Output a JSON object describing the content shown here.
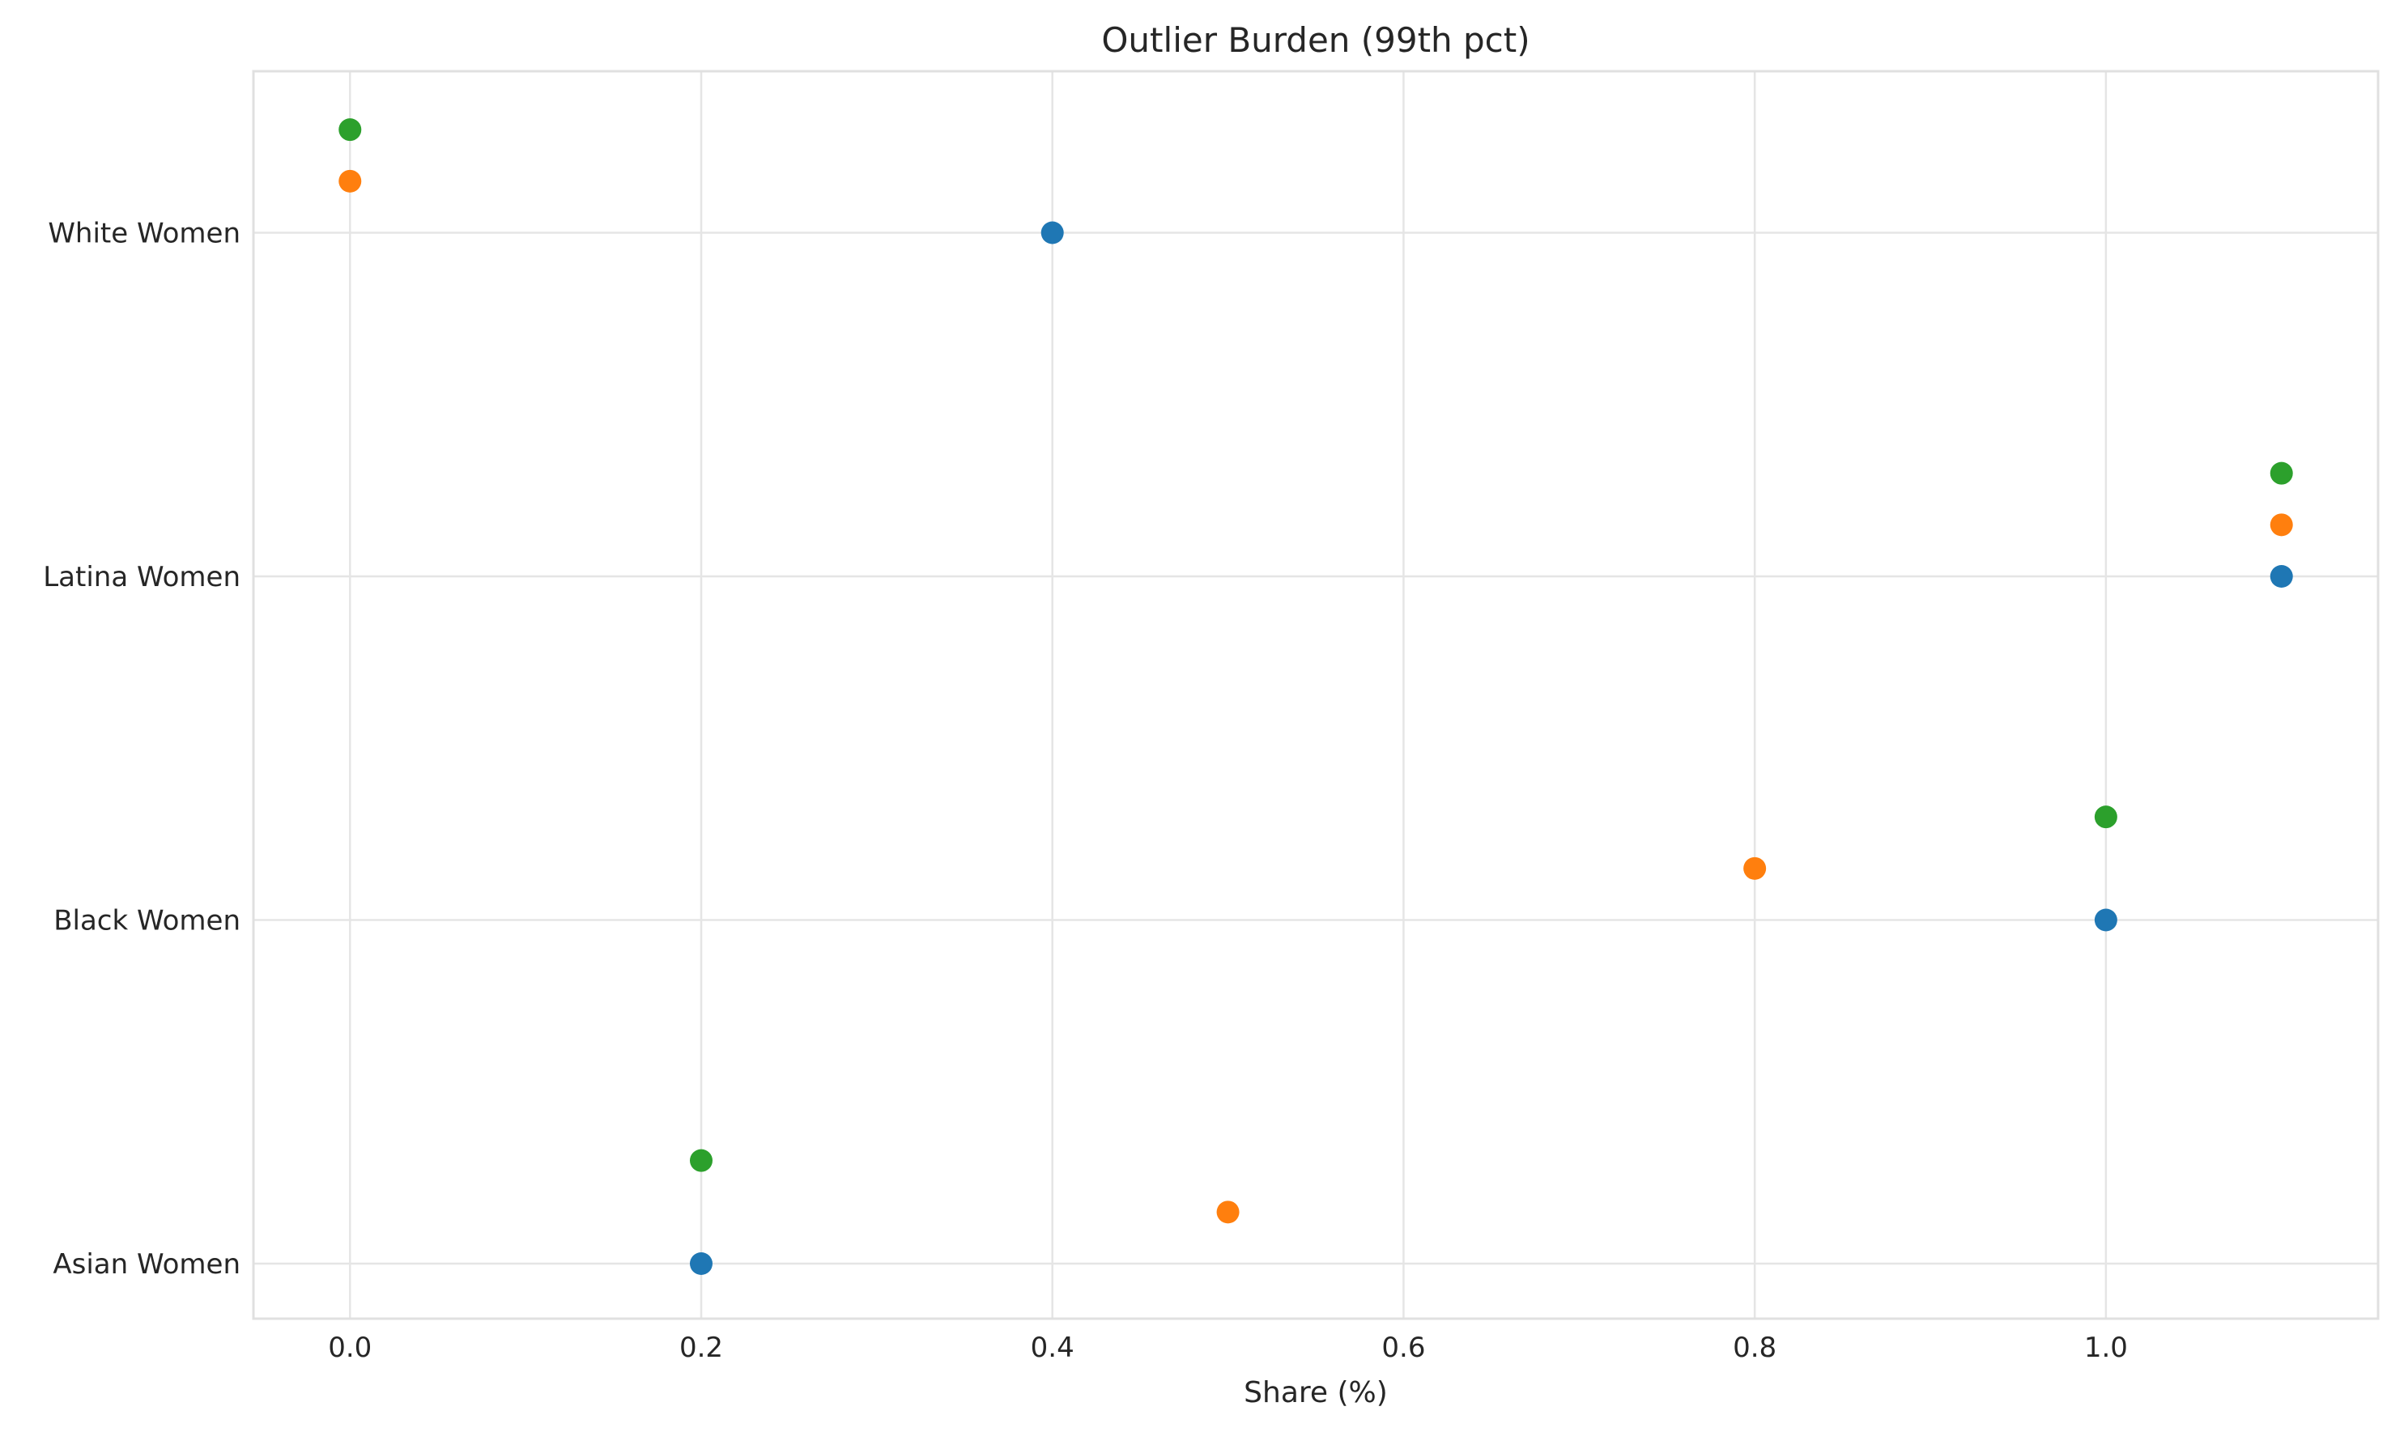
{
  "chart_data": {
    "type": "scatter",
    "title": "Outlier Burden (99th pct)",
    "xlabel": "Share (%)",
    "ylabel": "",
    "xlim": [
      -0.055,
      1.155
    ],
    "x_ticks": [
      0.0,
      0.2,
      0.4,
      0.6,
      0.8,
      1.0
    ],
    "x_tick_labels": [
      "0.0",
      "0.2",
      "0.4",
      "0.6",
      "0.8",
      "1.0"
    ],
    "categories": [
      "Asian Women",
      "Black Women",
      "Latina Women",
      "White Women"
    ],
    "grid": true,
    "legend": "none",
    "series": [
      {
        "color": "#1f77b4",
        "offset": 0.0,
        "values": [
          0.2,
          1.0,
          1.1,
          0.4
        ]
      },
      {
        "color": "#ff7f0e",
        "offset": 0.15,
        "values": [
          0.5,
          0.8,
          1.1,
          0.0
        ]
      },
      {
        "color": "#2ca02c",
        "offset": 0.3,
        "values": [
          0.2,
          1.0,
          1.1,
          0.0
        ]
      }
    ]
  }
}
